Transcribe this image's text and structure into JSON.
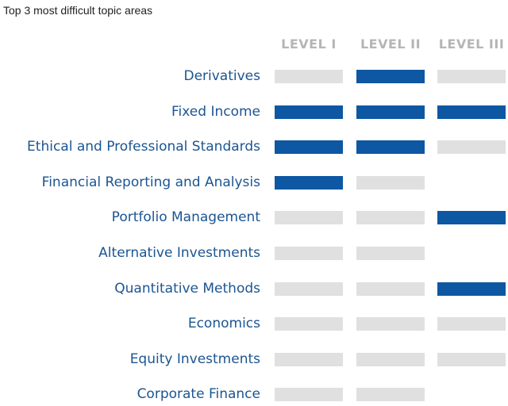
{
  "title": "Top 3 most difficult topic areas",
  "colors": {
    "difficult": "#0d57a3",
    "included": "#e0e0e0"
  },
  "chart_data": {
    "type": "table",
    "columns": [
      "LEVEL I",
      "LEVEL II",
      "LEVEL III"
    ],
    "rows": [
      {
        "label": "Derivatives",
        "cells": [
          "included",
          "difficult",
          "included"
        ]
      },
      {
        "label": "Fixed Income",
        "cells": [
          "difficult",
          "difficult",
          "difficult"
        ]
      },
      {
        "label": "Ethical and Professional Standards",
        "cells": [
          "difficult",
          "difficult",
          "included"
        ]
      },
      {
        "label": "Financial Reporting and Analysis",
        "cells": [
          "difficult",
          "included",
          "none"
        ]
      },
      {
        "label": "Portfolio Management",
        "cells": [
          "included",
          "included",
          "difficult"
        ]
      },
      {
        "label": "Alternative Investments",
        "cells": [
          "included",
          "included",
          "none"
        ]
      },
      {
        "label": "Quantitative Methods",
        "cells": [
          "included",
          "included",
          "difficult"
        ]
      },
      {
        "label": "Economics",
        "cells": [
          "included",
          "included",
          "included"
        ]
      },
      {
        "label": "Equity Investments",
        "cells": [
          "included",
          "included",
          "included"
        ]
      },
      {
        "label": "Corporate Finance",
        "cells": [
          "included",
          "included",
          "none"
        ]
      }
    ]
  }
}
